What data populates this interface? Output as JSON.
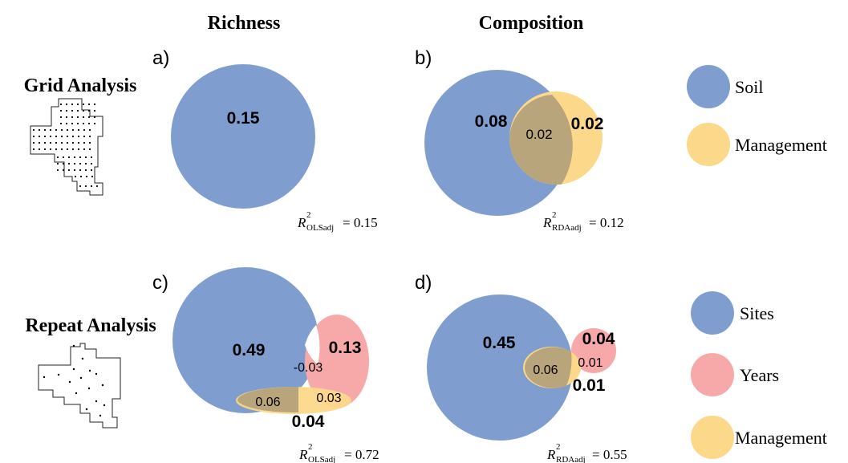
{
  "headers": {
    "richness": "Richness",
    "composition": "Composition"
  },
  "rows": {
    "grid": "Grid Analysis",
    "repeat": "Repeat Analysis"
  },
  "panels": {
    "a": {
      "letter": "a)",
      "value_soil": "0.15",
      "r2_sub": "OLSadj",
      "r2_value": "= 0.15"
    },
    "b": {
      "letter": "b)",
      "value_soil": "0.08",
      "value_overlap": "0.02",
      "value_management": "0.02",
      "r2_sub": "RDAadj",
      "r2_value": "= 0.12"
    },
    "c": {
      "letter": "c)",
      "value_sites": "0.49",
      "value_years": "0.13",
      "value_sites_years": "-0.03",
      "value_sites_management": "0.06",
      "value_years_management": "0.03",
      "value_management": "0.04",
      "r2_sub": "OLSadj",
      "r2_value": "= 0.72"
    },
    "d": {
      "letter": "d)",
      "value_sites": "0.45",
      "value_years": "0.04",
      "value_years_management": "0.01",
      "value_sites_management": "0.06",
      "value_management": "0.01",
      "r2_sub": "RDAadj",
      "r2_value": "= 0.55"
    }
  },
  "legend_top": [
    {
      "label": "Soil",
      "color": "#7f9ecf"
    },
    {
      "label": "Management",
      "color": "#fcd88a"
    }
  ],
  "legend_bottom": [
    {
      "label": "Sites",
      "color": "#7f9ecf"
    },
    {
      "label": "Years",
      "color": "#f7a8a8"
    },
    {
      "label": "Management",
      "color": "#fcd88a"
    }
  ],
  "r2_symbol": "R",
  "r2_power": "2",
  "colors": {
    "blue": "#7f9ecf",
    "yellow": "#fcd88a",
    "red": "#f7a8a8",
    "overlap_blue_yellow": "#b8a57c"
  }
}
